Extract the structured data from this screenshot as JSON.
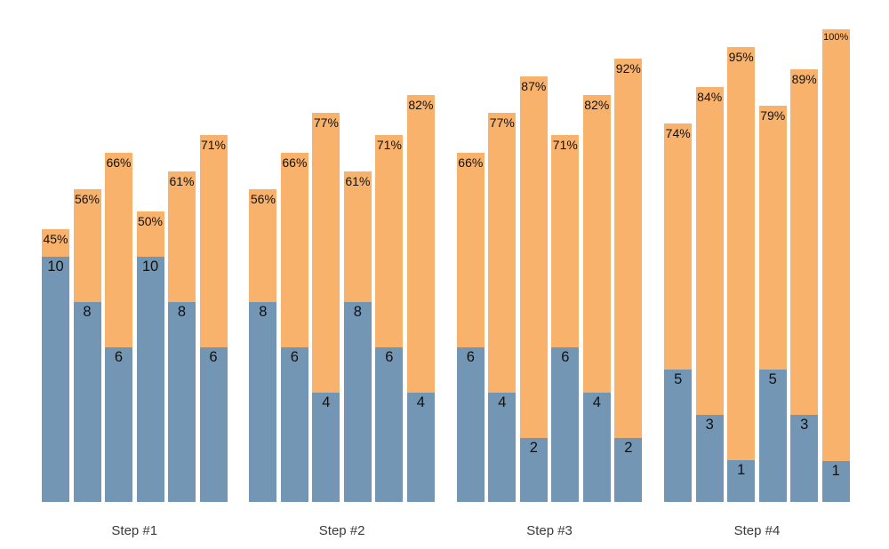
{
  "chart_data": {
    "type": "bar",
    "variant": "grouped stacked bars, percent-of-total label at top of each bar, count label at top of bottom segment",
    "title": "",
    "xlabel": "",
    "ylabel": "",
    "grid": false,
    "axes_visible": false,
    "legend_position": "none",
    "background_color": "#ffffff",
    "colors": {
      "top_segment": "#f9b26c",
      "bottom_segment": "#7396b5",
      "bar_label_text": "#111111",
      "group_label_text": "#3b3b3b"
    },
    "categories": [
      "Step #1",
      "Step #2",
      "Step #3",
      "Step #4"
    ],
    "groups": [
      {
        "label": "Step #1",
        "bars": [
          {
            "percent_label": "45%",
            "percent": 45,
            "value": 10
          },
          {
            "percent_label": "56%",
            "percent": 56,
            "value": 8
          },
          {
            "percent_label": "66%",
            "percent": 66,
            "value": 6
          },
          {
            "percent_label": "50%",
            "percent": 50,
            "value": 10
          },
          {
            "percent_label": "61%",
            "percent": 61,
            "value": 8
          },
          {
            "percent_label": "71%",
            "percent": 71,
            "value": 6
          }
        ]
      },
      {
        "label": "Step #2",
        "bars": [
          {
            "percent_label": "56%",
            "percent": 56,
            "value": 8
          },
          {
            "percent_label": "66%",
            "percent": 66,
            "value": 6
          },
          {
            "percent_label": "77%",
            "percent": 77,
            "value": 4
          },
          {
            "percent_label": "61%",
            "percent": 61,
            "value": 8
          },
          {
            "percent_label": "71%",
            "percent": 71,
            "value": 6
          },
          {
            "percent_label": "82%",
            "percent": 82,
            "value": 4
          }
        ]
      },
      {
        "label": "Step #3",
        "bars": [
          {
            "percent_label": "66%",
            "percent": 66,
            "value": 6
          },
          {
            "percent_label": "77%",
            "percent": 77,
            "value": 4
          },
          {
            "percent_label": "87%",
            "percent": 87,
            "value": 2
          },
          {
            "percent_label": "71%",
            "percent": 71,
            "value": 6
          },
          {
            "percent_label": "82%",
            "percent": 82,
            "value": 4
          },
          {
            "percent_label": "92%",
            "percent": 92,
            "value": 2
          }
        ]
      },
      {
        "label": "Step #4",
        "bars": [
          {
            "percent_label": "74%",
            "percent": 74,
            "value": 5
          },
          {
            "percent_label": "84%",
            "percent": 84,
            "value": 3
          },
          {
            "percent_label": "95%",
            "percent": 95,
            "value": 1
          },
          {
            "percent_label": "79%",
            "percent": 79,
            "value": 5
          },
          {
            "percent_label": "89%",
            "percent": 89,
            "value": 3
          },
          {
            "percent_label": "100%",
            "percent": 100,
            "value": 1
          }
        ]
      }
    ]
  }
}
